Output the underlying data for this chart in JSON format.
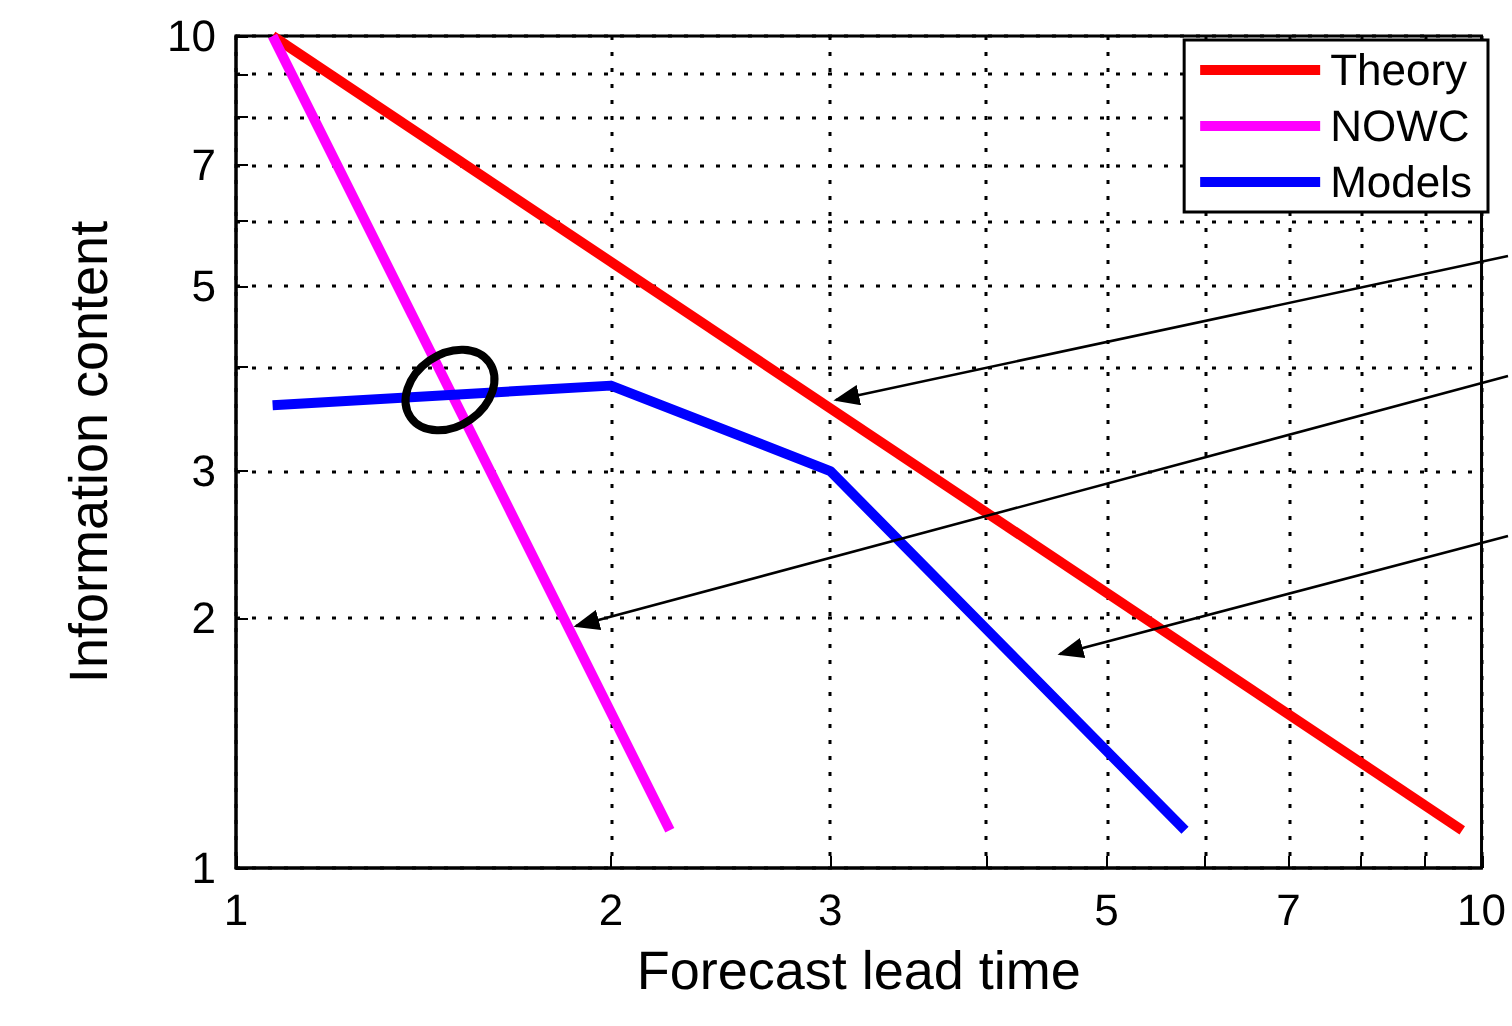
{
  "chart_data": {
    "type": "line",
    "xlabel": "Forecast lead time",
    "ylabel": "Information content",
    "log": "xy",
    "grid": true,
    "legend": "top right",
    "marker": "none",
    "line_style": "solid",
    "xlim": [
      1,
      10
    ],
    "ylim": [
      1,
      10
    ],
    "xticks": [
      1,
      2,
      3,
      {
        "value": 4,
        "label": null
      },
      5,
      {
        "value": 6,
        "label": null
      },
      7,
      {
        "value": 8,
        "label": null
      },
      {
        "value": 9,
        "label": null
      },
      10
    ],
    "yticks": [
      1,
      2,
      3,
      {
        "value": 4,
        "label": null
      },
      5,
      {
        "value": 6,
        "label": null
      },
      7,
      {
        "value": 8,
        "label": null
      },
      {
        "value": 9,
        "label": null
      },
      10
    ],
    "series": [
      {
        "name": "Theory",
        "color": "#ff0000",
        "x": [
          1.07,
          9.65
        ],
        "values": [
          10,
          1.11
        ]
      },
      {
        "name": "NOWC",
        "color": "#ff00ff",
        "x": [
          1.07,
          2.23
        ],
        "values": [
          10,
          1.11
        ]
      },
      {
        "name": "Models",
        "color": "#0000ff",
        "x": [
          1.07,
          2,
          3,
          5.78
        ],
        "values": [
          3.6,
          3.8,
          3,
          1.11
        ]
      }
    ]
  }
}
